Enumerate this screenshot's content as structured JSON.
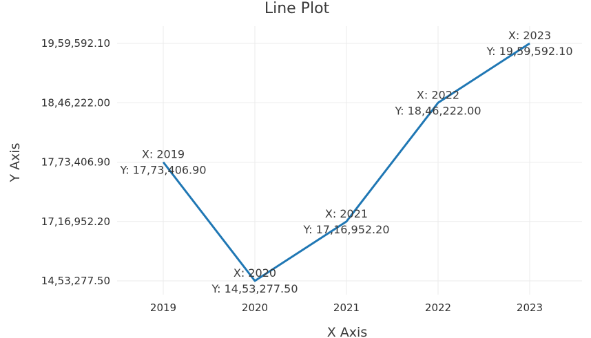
{
  "chart_data": {
    "type": "line",
    "title": "Line Plot",
    "xlabel": "X Axis",
    "ylabel": "Y Axis",
    "categories": [
      "2019",
      "2020",
      "2021",
      "2022",
      "2023"
    ],
    "y_tick_labels": [
      "14,53,277.50",
      "17,16,952.20",
      "17,73,406.90",
      "18,46,222.00",
      "19,59,592.10"
    ],
    "series": [
      {
        "color": "#1f77b4",
        "values": [
          1773406.9,
          1453277.5,
          1716952.2,
          1846222.0,
          1959592.1
        ],
        "point_labels": [
          [
            "X: 2019",
            "Y: 17,73,406.90"
          ],
          [
            "X: 2020",
            "Y: 14,53,277.50"
          ],
          [
            "X: 2021",
            "Y: 17,16,952.20"
          ],
          [
            "X: 2022",
            "Y: 18,46,222.00"
          ],
          [
            "X: 2023",
            "Y: 19,59,592.10"
          ]
        ]
      }
    ],
    "y_axis_scale": "categorical-by-value",
    "grid": true,
    "legend": "none"
  }
}
